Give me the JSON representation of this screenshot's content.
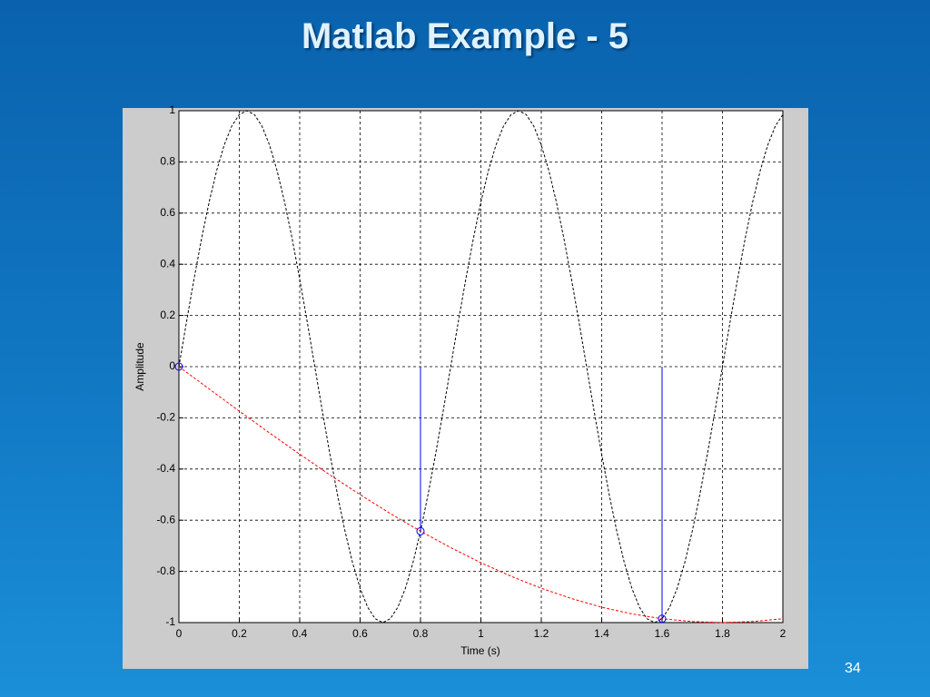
{
  "slide": {
    "title": "Matlab Example - 5",
    "page_number": "34"
  },
  "chart_data": {
    "type": "line",
    "xlabel": "Time (s)",
    "ylabel": "Amplitude",
    "xlim": [
      0,
      2
    ],
    "ylim": [
      -1,
      1
    ],
    "xticks": [
      0,
      0.2,
      0.4,
      0.6,
      0.8,
      1,
      1.2,
      1.4,
      1.6,
      1.8,
      2
    ],
    "yticks": [
      -1,
      -0.8,
      -0.6,
      -0.4,
      -0.2,
      0,
      0.2,
      0.4,
      0.6,
      0.8,
      1
    ],
    "grid": true,
    "series": [
      {
        "type": "line",
        "color": "#000000",
        "linestyle": "dashed",
        "x": [
          0,
          0.025,
          0.05,
          0.075,
          0.1,
          0.125,
          0.15,
          0.175,
          0.2,
          0.225,
          0.25,
          0.275,
          0.3,
          0.325,
          0.35,
          0.375,
          0.4,
          0.425,
          0.45,
          0.475,
          0.5,
          0.525,
          0.55,
          0.575,
          0.6,
          0.625,
          0.65,
          0.675,
          0.7,
          0.725,
          0.75,
          0.775,
          0.8,
          0.825,
          0.85,
          0.875,
          0.9,
          0.925,
          0.95,
          0.975,
          1,
          1.025,
          1.05,
          1.075,
          1.1,
          1.125,
          1.15,
          1.175,
          1.2,
          1.225,
          1.25,
          1.275,
          1.3,
          1.325,
          1.35,
          1.375,
          1.4,
          1.425,
          1.45,
          1.475,
          1.5,
          1.525,
          1.55,
          1.575,
          1.6,
          1.625,
          1.65,
          1.675,
          1.7,
          1.725,
          1.75,
          1.775,
          1.8,
          1.825,
          1.85,
          1.875,
          1.9,
          1.925,
          1.95,
          1.975,
          2
        ],
        "values": [
          0,
          0.174,
          0.342,
          0.5,
          0.643,
          0.766,
          0.866,
          0.94,
          0.985,
          1,
          0.985,
          0.94,
          0.866,
          0.766,
          0.643,
          0.5,
          0.342,
          0.174,
          0,
          -0.174,
          -0.342,
          -0.5,
          -0.643,
          -0.766,
          -0.866,
          -0.94,
          -0.985,
          -1,
          -0.985,
          -0.94,
          -0.866,
          -0.766,
          -0.643,
          -0.5,
          -0.342,
          -0.174,
          0,
          0.174,
          0.342,
          0.5,
          0.643,
          0.766,
          0.866,
          0.94,
          0.985,
          1,
          0.985,
          0.94,
          0.866,
          0.766,
          0.643,
          0.5,
          0.342,
          0.174,
          0,
          -0.174,
          -0.342,
          -0.5,
          -0.643,
          -0.766,
          -0.866,
          -0.94,
          -0.985,
          -1,
          -0.985,
          -0.94,
          -0.866,
          -0.766,
          -0.643,
          -0.5,
          -0.342,
          -0.174,
          0,
          0.174,
          0.342,
          0.5,
          0.643,
          0.766,
          0.866,
          0.94,
          0.985
        ]
      },
      {
        "type": "line",
        "color": "#ff0000",
        "linestyle": "dashed",
        "x": [
          0,
          0.1,
          0.2,
          0.3,
          0.4,
          0.5,
          0.6,
          0.7,
          0.8,
          0.9,
          1,
          1.1,
          1.2,
          1.3,
          1.4,
          1.5,
          1.6,
          1.7,
          1.8,
          1.9,
          2
        ],
        "values": [
          0,
          -0.087,
          -0.174,
          -0.259,
          -0.342,
          -0.423,
          -0.5,
          -0.574,
          -0.643,
          -0.707,
          -0.766,
          -0.819,
          -0.866,
          -0.906,
          -0.94,
          -0.966,
          -0.985,
          -0.996,
          -1,
          -0.996,
          -0.985
        ]
      },
      {
        "type": "stem",
        "color": "#0000ff",
        "linestyle": "solid",
        "x": [
          0,
          0.8,
          1.6
        ],
        "values": [
          0,
          -0.643,
          -0.985
        ]
      }
    ]
  }
}
